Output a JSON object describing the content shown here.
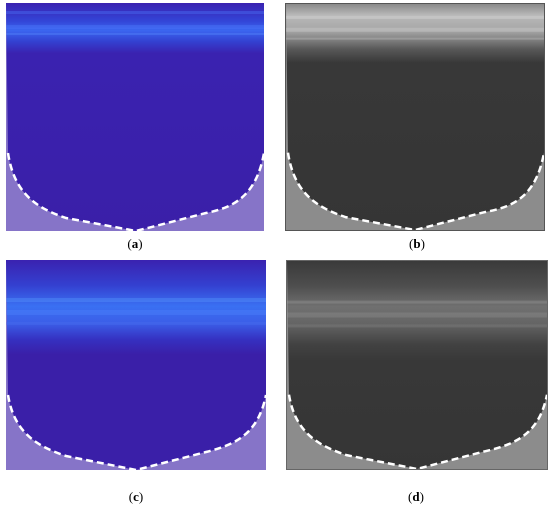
{
  "captions": {
    "a": "a",
    "b": "b",
    "c": "c",
    "d": "d"
  },
  "colors": {
    "blue_bg": "#3a1fa8",
    "blue_band": "#3b66f0",
    "blue_corner": "#8674c8",
    "gray_bg": "#383838",
    "gray_band": "#b9b9b9",
    "gray_corner": "#8c8c8c",
    "dashed_line": "#ffffff"
  }
}
